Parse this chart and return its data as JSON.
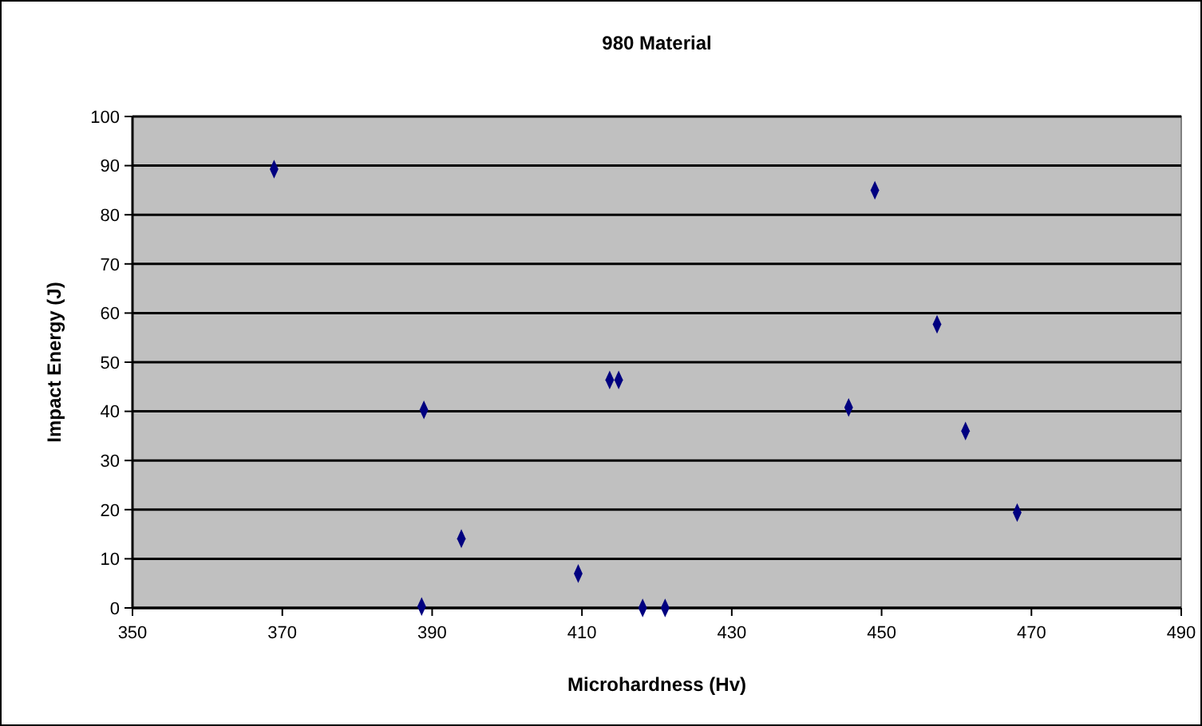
{
  "chart_data": {
    "type": "scatter",
    "title": "980 Material",
    "xlabel": "Microhardness (Hv)",
    "ylabel": "Impact Energy (J)",
    "x": [
      368.9,
      388.9,
      388.6,
      393.9,
      409.5,
      413.7,
      414.9,
      418.1,
      421.1,
      445.6,
      449.1,
      457.4,
      461.2,
      468.1
    ],
    "values": [
      89.3,
      40.3,
      0.3,
      14.1,
      7.0,
      46.4,
      46.4,
      0,
      0,
      40.8,
      85.0,
      57.7,
      36.0,
      19.4
    ],
    "color": "#000080",
    "marker": "diamond",
    "xlim": [
      350,
      490
    ],
    "xticks": [
      350,
      370,
      390,
      410,
      430,
      450,
      470,
      490
    ],
    "ylim": [
      0,
      100
    ],
    "yticks": [
      0,
      10,
      20,
      30,
      40,
      50,
      60,
      70,
      80,
      90,
      100
    ],
    "grid": "y"
  }
}
